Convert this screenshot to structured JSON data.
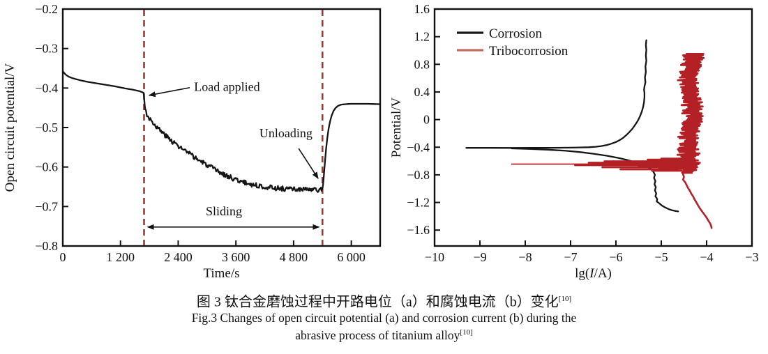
{
  "caption": {
    "zh": "图 3  钛合金磨蚀过程中开路电位（a）和腐蚀电流（b）变化",
    "ref": "[10]",
    "en_line1": "Fig.3 Changes of open circuit potential (a) and corrosion current (b) during the",
    "en_line2": "abrasive process of titanium alloy"
  },
  "chart_data": [
    {
      "id": "a-open-circuit-potential",
      "type": "line",
      "xlabel": "Time/s",
      "ylabel": "Open circuit potential/V",
      "xlim": [
        0,
        6600
      ],
      "ylim": [
        -0.8,
        -0.2
      ],
      "grid": false,
      "axis_color": "#111111",
      "xticks": [
        {
          "v": 0,
          "label": "0"
        },
        {
          "v": 1200,
          "label": "1 200"
        },
        {
          "v": 2400,
          "label": "2 400"
        },
        {
          "v": 3600,
          "label": "3 600"
        },
        {
          "v": 4800,
          "label": "4 800"
        },
        {
          "v": 6000,
          "label": "6 000"
        }
      ],
      "yticks": [
        {
          "v": -0.2,
          "label": "−0.2"
        },
        {
          "v": -0.3,
          "label": "−0.3"
        },
        {
          "v": -0.4,
          "label": "−0.4"
        },
        {
          "v": -0.5,
          "label": "−0.5"
        },
        {
          "v": -0.6,
          "label": "−0.6"
        },
        {
          "v": -0.7,
          "label": "−0.7"
        },
        {
          "v": -0.8,
          "label": "−0.8"
        }
      ],
      "event_line_color": "#a3362e",
      "event_lines": [
        1690,
        5400
      ],
      "annotations": {
        "load_applied": {
          "text": "Load applied",
          "text_x": 2730,
          "text_y": -0.3965,
          "arrow": [
            2640,
            -0.399,
            1795,
            -0.4185
          ]
        },
        "unloading": {
          "text": "Unloading",
          "text_x": 4640,
          "text_y": -0.514,
          "arrow": [
            4905,
            -0.553,
            5310,
            -0.629
          ]
        },
        "sliding": {
          "text": "Sliding",
          "text_x": 3350,
          "text_y": -0.712,
          "arrow_y": -0.752,
          "arrow_x1": 1765,
          "arrow_x2": 5330
        }
      },
      "series": [
        {
          "name": "open circuit potential",
          "color": "#151515",
          "noise": {
            "t_from": 1715,
            "t_to": 5405,
            "amp": 0.0062,
            "seed": 3,
            "dt": 14
          },
          "points": [
            [
              0,
              -0.357
            ],
            [
              30,
              -0.362
            ],
            [
              70,
              -0.367
            ],
            [
              120,
              -0.371
            ],
            [
              200,
              -0.375
            ],
            [
              350,
              -0.38
            ],
            [
              500,
              -0.384
            ],
            [
              700,
              -0.388
            ],
            [
              900,
              -0.392
            ],
            [
              1100,
              -0.396
            ],
            [
              1300,
              -0.401
            ],
            [
              1450,
              -0.404
            ],
            [
              1600,
              -0.408
            ],
            [
              1680,
              -0.412
            ],
            [
              1688,
              -0.422
            ],
            [
              1695,
              -0.432
            ],
            [
              1705,
              -0.444
            ],
            [
              1715,
              -0.453
            ],
            [
              1730,
              -0.46
            ],
            [
              1750,
              -0.466
            ],
            [
              1775,
              -0.471
            ],
            [
              1800,
              -0.476
            ],
            [
              1840,
              -0.482
            ],
            [
              1880,
              -0.488
            ],
            [
              1930,
              -0.495
            ],
            [
              1980,
              -0.502
            ],
            [
              2040,
              -0.509
            ],
            [
              2100,
              -0.516
            ],
            [
              2160,
              -0.523
            ],
            [
              2230,
              -0.53
            ],
            [
              2300,
              -0.537
            ],
            [
              2380,
              -0.545
            ],
            [
              2460,
              -0.552
            ],
            [
              2550,
              -0.56
            ],
            [
              2650,
              -0.568
            ],
            [
              2750,
              -0.576
            ],
            [
              2860,
              -0.585
            ],
            [
              2970,
              -0.593
            ],
            [
              3080,
              -0.601
            ],
            [
              3190,
              -0.609
            ],
            [
              3300,
              -0.616
            ],
            [
              3410,
              -0.622
            ],
            [
              3520,
              -0.628
            ],
            [
              3630,
              -0.633
            ],
            [
              3740,
              -0.638
            ],
            [
              3850,
              -0.642
            ],
            [
              3960,
              -0.645
            ],
            [
              4080,
              -0.648
            ],
            [
              4200,
              -0.65
            ],
            [
              4330,
              -0.652
            ],
            [
              4460,
              -0.654
            ],
            [
              4600,
              -0.655
            ],
            [
              4750,
              -0.656
            ],
            [
              4900,
              -0.657
            ],
            [
              5050,
              -0.657
            ],
            [
              5200,
              -0.658
            ],
            [
              5350,
              -0.658
            ],
            [
              5400,
              -0.657
            ],
            [
              5412,
              -0.645
            ],
            [
              5425,
              -0.628
            ],
            [
              5440,
              -0.605
            ],
            [
              5458,
              -0.578
            ],
            [
              5478,
              -0.552
            ],
            [
              5500,
              -0.527
            ],
            [
              5525,
              -0.505
            ],
            [
              5555,
              -0.486
            ],
            [
              5590,
              -0.47
            ],
            [
              5630,
              -0.458
            ],
            [
              5675,
              -0.45
            ],
            [
              5725,
              -0.445
            ],
            [
              5790,
              -0.442
            ],
            [
              5870,
              -0.441
            ],
            [
              5980,
              -0.44
            ],
            [
              6150,
              -0.44
            ],
            [
              6350,
              -0.44
            ],
            [
              6600,
              -0.441
            ]
          ]
        }
      ]
    },
    {
      "id": "b-polarization",
      "type": "line",
      "xlabel": "lg(I/A)",
      "xlabel_parts": [
        "lg(",
        "I",
        "/A)"
      ],
      "ylabel": "Potential/V",
      "xlim": [
        -10,
        -3
      ],
      "ylim": [
        -1.83,
        1.6
      ],
      "grid": false,
      "axis_color": "#111111",
      "xticks": [
        {
          "v": -10,
          "label": "−10"
        },
        {
          "v": -9,
          "label": "−9"
        },
        {
          "v": -8,
          "label": "−8"
        },
        {
          "v": -7,
          "label": "−7"
        },
        {
          "v": -6,
          "label": "−6"
        },
        {
          "v": -5,
          "label": "−5"
        },
        {
          "v": -4,
          "label": "−4"
        },
        {
          "v": -3,
          "label": "−3"
        }
      ],
      "yticks": [
        {
          "v": 1.6,
          "label": "1.6"
        },
        {
          "v": 1.2,
          "label": "1.2"
        },
        {
          "v": 0.8,
          "label": "0.8"
        },
        {
          "v": 0.4,
          "label": "0.4"
        },
        {
          "v": 0,
          "label": "0"
        },
        {
          "v": -0.4,
          "label": "−0.4"
        },
        {
          "v": -0.8,
          "label": "−0.8"
        },
        {
          "v": -1.2,
          "label": "−1.2"
        },
        {
          "v": -1.6,
          "label": "−1.6"
        }
      ],
      "legend": {
        "position": "top-left",
        "items": [
          {
            "label": "Corrosion",
            "swatch_color": "#151515"
          },
          {
            "label": "Tribocorrosion",
            "swatch_color": "#c26a60"
          }
        ]
      },
      "series": [
        {
          "name": "Corrosion",
          "color": "#151515",
          "paths": [
            [
              [
                -9.3,
                -0.41
              ],
              [
                -8.8,
                -0.41
              ],
              [
                -8.3,
                -0.411
              ],
              [
                -7.8,
                -0.41
              ],
              [
                -7.4,
                -0.409
              ],
              [
                -7.0,
                -0.407
              ],
              [
                -6.8,
                -0.404
              ],
              [
                -6.6,
                -0.4
              ],
              [
                -6.45,
                -0.393
              ],
              [
                -6.32,
                -0.383
              ],
              [
                -6.2,
                -0.368
              ],
              [
                -6.1,
                -0.349
              ],
              [
                -6.0,
                -0.325
              ],
              [
                -5.92,
                -0.298
              ],
              [
                -5.85,
                -0.268
              ],
              [
                -5.78,
                -0.23
              ],
              [
                -5.71,
                -0.185
              ],
              [
                -5.64,
                -0.135
              ],
              [
                -5.58,
                -0.08
              ],
              [
                -5.52,
                -0.02
              ],
              [
                -5.47,
                0.045
              ],
              [
                -5.43,
                0.115
              ],
              [
                -5.4,
                0.185
              ],
              [
                -5.38,
                0.255
              ],
              [
                -5.37,
                0.325
              ],
              [
                -5.37,
                0.385
              ],
              [
                -5.38,
                0.43
              ],
              [
                -5.37,
                0.48
              ],
              [
                -5.35,
                0.54
              ],
              [
                -5.36,
                0.61
              ],
              [
                -5.34,
                0.69
              ],
              [
                -5.35,
                0.77
              ],
              [
                -5.33,
                0.85
              ],
              [
                -5.34,
                0.93
              ],
              [
                -5.33,
                1.01
              ],
              [
                -5.34,
                1.08
              ],
              [
                -5.33,
                1.15
              ]
            ],
            [
              [
                -8.3,
                -0.418
              ],
              [
                -7.9,
                -0.425
              ],
              [
                -7.5,
                -0.436
              ],
              [
                -7.1,
                -0.452
              ],
              [
                -6.8,
                -0.47
              ],
              [
                -6.5,
                -0.494
              ],
              [
                -6.2,
                -0.524
              ],
              [
                -5.95,
                -0.555
              ],
              [
                -5.75,
                -0.585
              ],
              [
                -5.57,
                -0.617
              ],
              [
                -5.42,
                -0.65
              ],
              [
                -5.3,
                -0.684
              ],
              [
                -5.22,
                -0.72
              ],
              [
                -5.17,
                -0.758
              ],
              [
                -5.14,
                -0.8
              ],
              [
                -5.16,
                -0.845
              ],
              [
                -5.13,
                -0.89
              ],
              [
                -5.15,
                -0.935
              ],
              [
                -5.12,
                -0.98
              ],
              [
                -5.14,
                -1.025
              ],
              [
                -5.11,
                -1.07
              ],
              [
                -5.13,
                -1.11
              ],
              [
                -5.09,
                -1.15
              ],
              [
                -5.1,
                -1.185
              ],
              [
                -5.04,
                -1.215
              ],
              [
                -4.99,
                -1.243
              ],
              [
                -4.92,
                -1.27
              ],
              [
                -4.84,
                -1.295
              ],
              [
                -4.76,
                -1.313
              ],
              [
                -4.68,
                -1.325
              ],
              [
                -4.63,
                -1.33
              ]
            ]
          ]
        },
        {
          "name": "Tribocorrosion",
          "color": "#b32025",
          "ocp_spikes": [
            [
              -0.645,
              -8.3,
              -4.45
            ],
            [
              -0.605,
              -6.25,
              -4.55
            ],
            [
              -0.625,
              -6.6,
              -4.6
            ],
            [
              -0.66,
              -6.9,
              -4.5
            ],
            [
              -0.69,
              -6.3,
              -4.6
            ],
            [
              -0.72,
              -5.9,
              -4.65
            ],
            [
              -0.615,
              -5.6,
              -4.4
            ],
            [
              -0.58,
              -5.3,
              -4.45
            ],
            [
              -0.68,
              -5.5,
              -4.35
            ],
            [
              -0.74,
              -5.2,
              -4.55
            ],
            [
              -0.565,
              -5.0,
              -4.42
            ],
            [
              -0.65,
              -5.8,
              -4.25
            ],
            [
              -0.7,
              -5.05,
              -4.38
            ],
            [
              -0.635,
              -5.45,
              -4.3
            ],
            [
              -0.67,
              -5.15,
              -4.28
            ],
            [
              -0.59,
              -4.95,
              -4.38
            ],
            [
              -0.645,
              -5.6,
              -4.18
            ],
            [
              -0.71,
              -4.95,
              -4.42
            ],
            [
              -0.625,
              -5.25,
              -4.15
            ],
            [
              -0.655,
              -5.35,
              -4.22
            ],
            [
              -0.6,
              -5.1,
              -4.35
            ],
            [
              -0.675,
              -4.9,
              -4.3
            ]
          ],
          "band": {
            "seed": 11,
            "v_min": -0.78,
            "v_max": 0.95,
            "step": 0.02,
            "x_center": -4.3,
            "spread_left": 0.3,
            "spread_right": 0.17
          },
          "lower_branch": [
            [
              -4.52,
              -0.79
            ],
            [
              -4.5,
              -0.83
            ],
            [
              -4.52,
              -0.87
            ],
            [
              -4.47,
              -0.91
            ],
            [
              -4.44,
              -0.95
            ],
            [
              -4.41,
              -0.99
            ],
            [
              -4.37,
              -1.03
            ],
            [
              -4.34,
              -1.07
            ],
            [
              -4.3,
              -1.11
            ],
            [
              -4.27,
              -1.15
            ],
            [
              -4.23,
              -1.195
            ],
            [
              -4.19,
              -1.24
            ],
            [
              -4.15,
              -1.285
            ],
            [
              -4.1,
              -1.33
            ],
            [
              -4.05,
              -1.375
            ],
            [
              -4.0,
              -1.42
            ],
            [
              -3.96,
              -1.465
            ],
            [
              -3.92,
              -1.505
            ],
            [
              -3.9,
              -1.54
            ],
            [
              -3.89,
              -1.57
            ]
          ]
        }
      ]
    }
  ]
}
